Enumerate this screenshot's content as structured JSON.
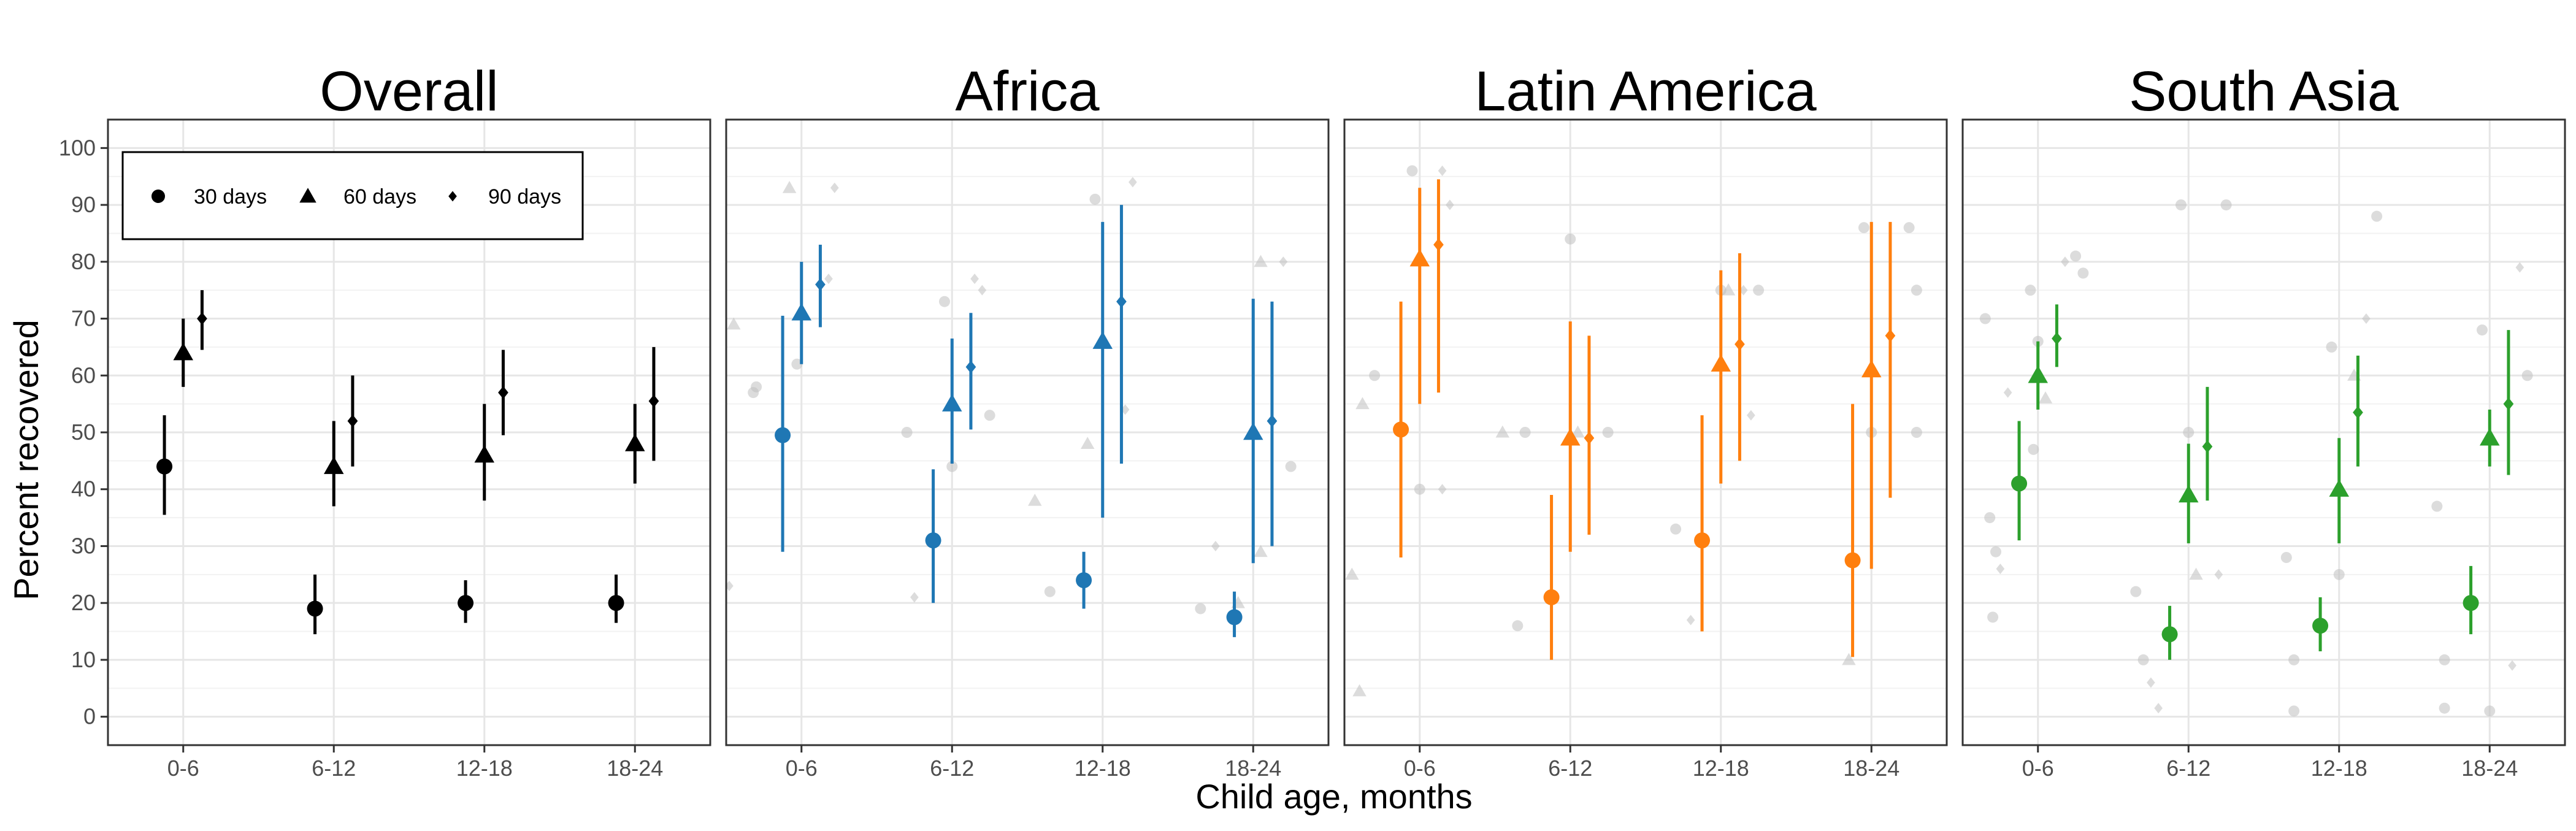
{
  "chart_data": {
    "type": "scatter",
    "subtype": "point-range with jittered background points, 4 facets",
    "xlabel": "Child age, months",
    "ylabel": "Percent recovered",
    "categories": [
      "0-6",
      "6-12",
      "12-18",
      "18-24"
    ],
    "ylim": [
      -5,
      105
    ],
    "yticks": [
      0,
      10,
      20,
      30,
      40,
      50,
      60,
      70,
      80,
      90,
      100
    ],
    "grid": true,
    "legend": {
      "placement": "top-left of first panel",
      "entries": [
        {
          "label": "30 days",
          "shape": "circle"
        },
        {
          "label": "60 days",
          "shape": "triangle"
        },
        {
          "label": "90 days",
          "shape": "diamond"
        }
      ]
    },
    "panels": [
      {
        "title": "Overall",
        "color": "#000000",
        "series": [
          {
            "name": "30 days",
            "shape": "circle",
            "values": [
              44,
              19,
              20,
              20
            ],
            "lower": [
              35.5,
              14.5,
              16.5,
              16.5
            ],
            "upper": [
              53,
              25,
              24,
              25
            ]
          },
          {
            "name": "60 days",
            "shape": "triangle",
            "values": [
              64,
              44,
              46,
              48
            ],
            "lower": [
              58,
              37,
              38,
              41
            ],
            "upper": [
              70,
              52,
              55,
              55
            ]
          },
          {
            "name": "90 days",
            "shape": "diamond",
            "values": [
              70,
              52,
              57,
              55.5
            ],
            "lower": [
              64.5,
              44,
              49.5,
              45
            ],
            "upper": [
              75,
              60,
              64.5,
              65
            ]
          }
        ],
        "background_points": []
      },
      {
        "title": "Africa",
        "color": "#1f77b4",
        "series": [
          {
            "name": "30 days",
            "shape": "circle",
            "values": [
              49.5,
              31,
              24,
              17.5
            ],
            "lower": [
              29,
              20,
              19,
              14
            ],
            "upper": [
              70.5,
              43.5,
              29,
              22
            ]
          },
          {
            "name": "60 days",
            "shape": "triangle",
            "values": [
              71,
              55,
              66,
              50
            ],
            "lower": [
              62,
              44.5,
              35,
              27
            ],
            "upper": [
              80,
              66.5,
              87,
              73.5
            ]
          },
          {
            "name": "90 days",
            "shape": "diamond",
            "values": [
              76,
              61.5,
              73,
              52
            ],
            "lower": [
              68.5,
              50.5,
              44.5,
              30
            ],
            "upper": [
              83,
              71,
              90,
              73
            ]
          }
        ],
        "background_points": [
          {
            "cat": 0,
            "off": -0.45,
            "y": 69
          },
          {
            "cat": 0,
            "off": -0.48,
            "y": 23
          },
          {
            "cat": 0,
            "off": -0.3,
            "y": 58
          },
          {
            "cat": 0,
            "off": -0.32,
            "y": 57
          },
          {
            "cat": 0,
            "off": -0.08,
            "y": 93
          },
          {
            "cat": 0,
            "off": -0.03,
            "y": 62
          },
          {
            "cat": 0,
            "off": 0.22,
            "y": 93
          },
          {
            "cat": 0,
            "off": 0.18,
            "y": 77
          },
          {
            "cat": 1,
            "off": -0.3,
            "y": 50
          },
          {
            "cat": 1,
            "off": -0.25,
            "y": 21
          },
          {
            "cat": 1,
            "off": -0.05,
            "y": 73
          },
          {
            "cat": 1,
            "off": 0.0,
            "y": 44
          },
          {
            "cat": 1,
            "off": 0.15,
            "y": 77
          },
          {
            "cat": 1,
            "off": 0.2,
            "y": 75
          },
          {
            "cat": 1,
            "off": 0.25,
            "y": 53
          },
          {
            "cat": 2,
            "off": -0.45,
            "y": 38
          },
          {
            "cat": 2,
            "off": -0.35,
            "y": 22
          },
          {
            "cat": 2,
            "off": -0.05,
            "y": 91
          },
          {
            "cat": 2,
            "off": -0.1,
            "y": 48
          },
          {
            "cat": 2,
            "off": 0.2,
            "y": 94
          },
          {
            "cat": 2,
            "off": 0.15,
            "y": 54
          },
          {
            "cat": 3,
            "off": -0.35,
            "y": 19
          },
          {
            "cat": 3,
            "off": -0.25,
            "y": 30
          },
          {
            "cat": 3,
            "off": -0.1,
            "y": 20
          },
          {
            "cat": 3,
            "off": 0.05,
            "y": 29
          },
          {
            "cat": 3,
            "off": 0.05,
            "y": 80
          },
          {
            "cat": 3,
            "off": 0.2,
            "y": 80
          },
          {
            "cat": 3,
            "off": 0.25,
            "y": 44
          }
        ]
      },
      {
        "title": "Latin America",
        "color": "#ff7f0e",
        "series": [
          {
            "name": "30 days",
            "shape": "circle",
            "values": [
              50.5,
              21,
              31,
              27.5
            ],
            "lower": [
              28,
              10,
              15,
              10.5
            ],
            "upper": [
              73,
              39,
              53,
              55
            ]
          },
          {
            "name": "60 days",
            "shape": "triangle",
            "values": [
              80.5,
              49,
              62,
              61
            ],
            "lower": [
              55,
              29,
              41,
              26
            ],
            "upper": [
              93,
              69.5,
              78.5,
              87
            ]
          },
          {
            "name": "90 days",
            "shape": "diamond",
            "values": [
              83,
              49,
              65.5,
              67
            ],
            "lower": [
              57,
              32,
              45,
              38.5
            ],
            "upper": [
              94.5,
              67,
              81.5,
              87
            ]
          }
        ],
        "background_points": [
          {
            "cat": 0,
            "off": -0.45,
            "y": 25
          },
          {
            "cat": 0,
            "off": -0.4,
            "y": 4.5
          },
          {
            "cat": 0,
            "off": -0.3,
            "y": 60
          },
          {
            "cat": 0,
            "off": -0.38,
            "y": 55
          },
          {
            "cat": 0,
            "off": -0.05,
            "y": 96
          },
          {
            "cat": 0,
            "off": 0.0,
            "y": 40
          },
          {
            "cat": 0,
            "off": 0.15,
            "y": 96
          },
          {
            "cat": 0,
            "off": 0.15,
            "y": 40
          },
          {
            "cat": 0,
            "off": 0.2,
            "y": 90
          },
          {
            "cat": 1,
            "off": -0.45,
            "y": 50
          },
          {
            "cat": 1,
            "off": -0.35,
            "y": 16
          },
          {
            "cat": 1,
            "off": -0.3,
            "y": 50
          },
          {
            "cat": 1,
            "off": 0.0,
            "y": 84
          },
          {
            "cat": 1,
            "off": 0.05,
            "y": 50
          },
          {
            "cat": 1,
            "off": 0.25,
            "y": 50
          },
          {
            "cat": 2,
            "off": -0.3,
            "y": 33
          },
          {
            "cat": 2,
            "off": -0.2,
            "y": 17
          },
          {
            "cat": 2,
            "off": 0.0,
            "y": 75
          },
          {
            "cat": 2,
            "off": 0.05,
            "y": 75
          },
          {
            "cat": 2,
            "off": 0.15,
            "y": 75
          },
          {
            "cat": 2,
            "off": 0.25,
            "y": 75
          },
          {
            "cat": 2,
            "off": 0.2,
            "y": 53
          },
          {
            "cat": 3,
            "off": -0.05,
            "y": 86
          },
          {
            "cat": 3,
            "off": 0.0,
            "y": 50
          },
          {
            "cat": 3,
            "off": -0.15,
            "y": 10
          },
          {
            "cat": 3,
            "off": 0.25,
            "y": 86
          },
          {
            "cat": 3,
            "off": 0.3,
            "y": 50
          },
          {
            "cat": 3,
            "off": 0.3,
            "y": 75
          }
        ]
      },
      {
        "title": "South Asia",
        "color": "#2ca02c",
        "series": [
          {
            "name": "30 days",
            "shape": "circle",
            "values": [
              41,
              14.5,
              16,
              20
            ],
            "lower": [
              31,
              10,
              11.5,
              14.5
            ],
            "upper": [
              52,
              19.5,
              21,
              26.5
            ]
          },
          {
            "name": "60 days",
            "shape": "triangle",
            "values": [
              60,
              39,
              40,
              49
            ],
            "lower": [
              54,
              30.5,
              30.5,
              44
            ],
            "upper": [
              66,
              48,
              49,
              54
            ]
          },
          {
            "name": "90 days",
            "shape": "diamond",
            "values": [
              66.5,
              47.5,
              53.5,
              55
            ],
            "lower": [
              61.5,
              38,
              44,
              42.5
            ],
            "upper": [
              72.5,
              58,
              63.5,
              68
            ]
          }
        ],
        "background_points": [
          {
            "cat": 0,
            "off": -0.35,
            "y": 70
          },
          {
            "cat": 0,
            "off": -0.32,
            "y": 35
          },
          {
            "cat": 0,
            "off": -0.28,
            "y": 29
          },
          {
            "cat": 0,
            "off": -0.3,
            "y": 17.5
          },
          {
            "cat": 0,
            "off": -0.25,
            "y": 26
          },
          {
            "cat": 0,
            "off": -0.2,
            "y": 57
          },
          {
            "cat": 0,
            "off": -0.05,
            "y": 75
          },
          {
            "cat": 0,
            "off": 0.0,
            "y": 66
          },
          {
            "cat": 0,
            "off": 0.05,
            "y": 56
          },
          {
            "cat": 0,
            "off": -0.03,
            "y": 47
          },
          {
            "cat": 0,
            "off": 0.18,
            "y": 80
          },
          {
            "cat": 0,
            "off": 0.25,
            "y": 81
          },
          {
            "cat": 0,
            "off": 0.3,
            "y": 78
          },
          {
            "cat": 1,
            "off": -0.35,
            "y": 22
          },
          {
            "cat": 1,
            "off": -0.3,
            "y": 10
          },
          {
            "cat": 1,
            "off": -0.25,
            "y": 6
          },
          {
            "cat": 1,
            "off": -0.2,
            "y": 1.5
          },
          {
            "cat": 1,
            "off": -0.05,
            "y": 90
          },
          {
            "cat": 1,
            "off": 0.0,
            "y": 50
          },
          {
            "cat": 1,
            "off": 0.05,
            "y": 25
          },
          {
            "cat": 1,
            "off": 0.25,
            "y": 90
          },
          {
            "cat": 1,
            "off": 0.2,
            "y": 25
          },
          {
            "cat": 2,
            "off": -0.35,
            "y": 28
          },
          {
            "cat": 2,
            "off": -0.3,
            "y": 10
          },
          {
            "cat": 2,
            "off": -0.3,
            "y": 1
          },
          {
            "cat": 2,
            "off": -0.05,
            "y": 65
          },
          {
            "cat": 2,
            "off": 0.0,
            "y": 25
          },
          {
            "cat": 2,
            "off": 0.25,
            "y": 88
          },
          {
            "cat": 2,
            "off": 0.18,
            "y": 70
          },
          {
            "cat": 2,
            "off": 0.1,
            "y": 60
          },
          {
            "cat": 3,
            "off": -0.35,
            "y": 37
          },
          {
            "cat": 3,
            "off": -0.3,
            "y": 10
          },
          {
            "cat": 3,
            "off": -0.3,
            "y": 1.5
          },
          {
            "cat": 3,
            "off": -0.05,
            "y": 68
          },
          {
            "cat": 3,
            "off": 0.0,
            "y": 1
          },
          {
            "cat": 3,
            "off": 0.2,
            "y": 79
          },
          {
            "cat": 3,
            "off": 0.15,
            "y": 9
          },
          {
            "cat": 3,
            "off": 0.25,
            "y": 60
          }
        ]
      }
    ]
  }
}
